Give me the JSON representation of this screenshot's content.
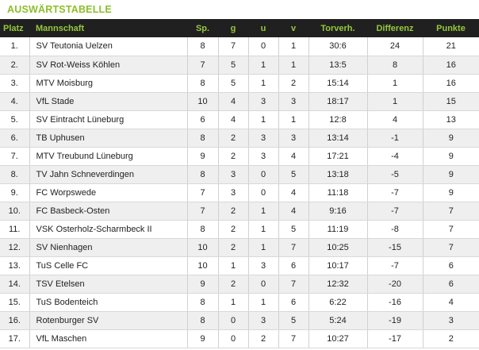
{
  "title": "AUSWÄRTSTABELLE",
  "colors": {
    "accent": "#8cbf2a",
    "header_bg": "#202020",
    "header_text": "#95c93b",
    "row_alt": "#efefef"
  },
  "columns": [
    "Platz",
    "Mannschaft",
    "Sp.",
    "g",
    "u",
    "v",
    "Torverh.",
    "Differenz",
    "Punkte"
  ],
  "rows": [
    [
      "1.",
      "SV Teutonia Uelzen",
      "8",
      "7",
      "0",
      "1",
      "30:6",
      "24",
      "21"
    ],
    [
      "2.",
      "SV Rot-Weiss Köhlen",
      "7",
      "5",
      "1",
      "1",
      "13:5",
      "8",
      "16"
    ],
    [
      "3.",
      "MTV Moisburg",
      "8",
      "5",
      "1",
      "2",
      "15:14",
      "1",
      "16"
    ],
    [
      "4.",
      "VfL Stade",
      "10",
      "4",
      "3",
      "3",
      "18:17",
      "1",
      "15"
    ],
    [
      "5.",
      "SV Eintracht Lüneburg",
      "6",
      "4",
      "1",
      "1",
      "12:8",
      "4",
      "13"
    ],
    [
      "6.",
      "TB Uphusen",
      "8",
      "2",
      "3",
      "3",
      "13:14",
      "-1",
      "9"
    ],
    [
      "7.",
      "MTV Treubund Lüneburg",
      "9",
      "2",
      "3",
      "4",
      "17:21",
      "-4",
      "9"
    ],
    [
      "8.",
      "TV Jahn Schneverdingen",
      "8",
      "3",
      "0",
      "5",
      "13:18",
      "-5",
      "9"
    ],
    [
      "9.",
      "FC Worpswede",
      "7",
      "3",
      "0",
      "4",
      "11:18",
      "-7",
      "9"
    ],
    [
      "10.",
      "FC Basbeck-Osten",
      "7",
      "2",
      "1",
      "4",
      "9:16",
      "-7",
      "7"
    ],
    [
      "11.",
      "VSK Osterholz-Scharmbeck II",
      "8",
      "2",
      "1",
      "5",
      "11:19",
      "-8",
      "7"
    ],
    [
      "12.",
      "SV Nienhagen",
      "10",
      "2",
      "1",
      "7",
      "10:25",
      "-15",
      "7"
    ],
    [
      "13.",
      "TuS Celle FC",
      "10",
      "1",
      "3",
      "6",
      "10:17",
      "-7",
      "6"
    ],
    [
      "14.",
      "TSV Etelsen",
      "9",
      "2",
      "0",
      "7",
      "12:32",
      "-20",
      "6"
    ],
    [
      "15.",
      "TuS Bodenteich",
      "8",
      "1",
      "1",
      "6",
      "6:22",
      "-16",
      "4"
    ],
    [
      "16.",
      "Rotenburger SV",
      "8",
      "0",
      "3",
      "5",
      "5:24",
      "-19",
      "3"
    ],
    [
      "17.",
      "VfL Maschen",
      "9",
      "0",
      "2",
      "7",
      "10:27",
      "-17",
      "2"
    ]
  ]
}
